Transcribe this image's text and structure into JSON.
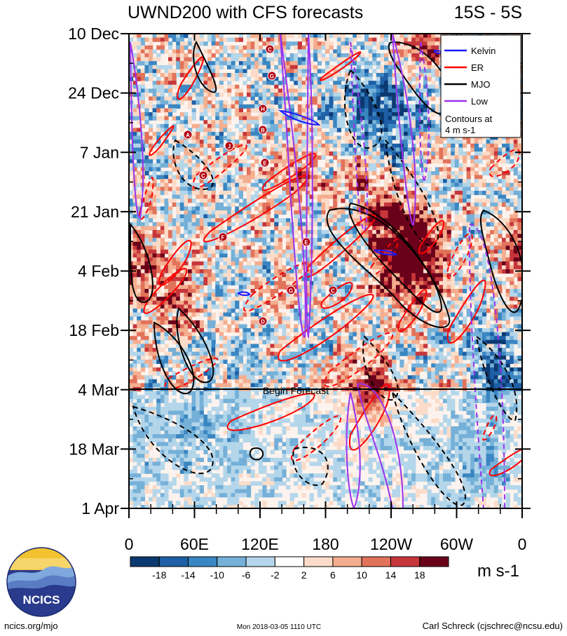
{
  "chart_data": {
    "type": "heatmap",
    "title": "UWND200 with CFS forecasts",
    "region": "15S - 5S",
    "y_tick_labels": [
      "10 Dec",
      "24 Dec",
      "7 Jan",
      "21 Jan",
      "4 Feb",
      "18 Feb",
      "4 Mar",
      "18 Mar",
      "1 Apr"
    ],
    "x_tick_labels": [
      "0",
      "60E",
      "120E",
      "180",
      "120W",
      "60W",
      "0"
    ],
    "x_range_degrees_east": [
      0,
      360
    ],
    "begin_forecast_label": "Begin Forecast",
    "begin_forecast_date": "4 Mar",
    "legend": [
      {
        "label": "Kelvin",
        "color": "#1a1aff"
      },
      {
        "label": "ER",
        "color": "#ff0000"
      },
      {
        "label": "MJO",
        "color": "#000000"
      },
      {
        "label": "Low",
        "color": "#9933ee"
      }
    ],
    "legend_note": [
      "Contours at",
      "4 m s-1"
    ],
    "colorbar": {
      "levels": [
        "-18",
        "-14",
        "-10",
        "-6",
        "-2",
        "2",
        "6",
        "10",
        "14",
        "18"
      ],
      "colors": [
        "#0c3970",
        "#1e5fa6",
        "#3a86c2",
        "#75b0d8",
        "#b4d6ea",
        "#e4eff7",
        "#ffffff",
        "#fbdcc9",
        "#f4ae8f",
        "#e2735b",
        "#c6363b",
        "#980f26",
        "#6a0019"
      ],
      "units": "m s-1"
    },
    "tc_markers": [
      "C",
      "G",
      "H",
      "B",
      "A",
      "J",
      "E",
      "C",
      "F",
      "E",
      "G",
      "C",
      "D"
    ]
  },
  "logo": {
    "text": "NCICS"
  },
  "footer": {
    "left": "ncics.org/mjo",
    "center": "Mon 2018-03-05 1110 UTC",
    "right": "Carl Schreck (cjschrec@ncsu.edu)"
  }
}
